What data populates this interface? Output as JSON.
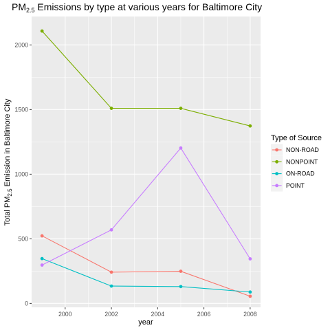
{
  "chart_data": {
    "type": "line",
    "title": {
      "prefix": "PM",
      "subscript": "2.5",
      "suffix": " Emissions by type at various years for Baltimore City"
    },
    "xlabel": "year",
    "ylabel": {
      "prefix": "Total PM",
      "subscript": "2.5",
      "suffix": " Emission in Baltimore City"
    },
    "x": [
      1999,
      2002,
      2005,
      2008
    ],
    "xlim": [
      1998.55,
      2008.45
    ],
    "ylim": [
      -30,
      2220
    ],
    "x_ticks": [
      2000,
      2002,
      2004,
      2006,
      2008
    ],
    "y_ticks": [
      0,
      500,
      1000,
      1500,
      2000
    ],
    "grid": true,
    "legend_position": "right",
    "legend_title": "Type of Source",
    "series": [
      {
        "name": "NON-ROAD",
        "color": "#F8766D",
        "values": [
          522.9,
          242.0,
          248.9,
          55.8
        ]
      },
      {
        "name": "NONPOINT",
        "color": "#7CAE00",
        "values": [
          2107.6,
          1509.5,
          1509.5,
          1373.2
        ]
      },
      {
        "name": "ON-ROAD",
        "color": "#00BFC4",
        "values": [
          346.8,
          134.3,
          130.4,
          88.3
        ]
      },
      {
        "name": "POINT",
        "color": "#C77CFF",
        "values": [
          296.8,
          569.3,
          1202.5,
          344.98
        ]
      }
    ]
  }
}
